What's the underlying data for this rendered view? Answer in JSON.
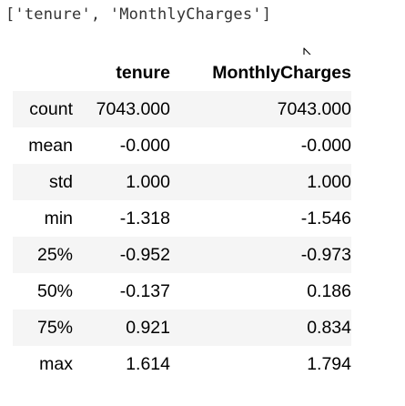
{
  "output_text": "['tenure', 'MonthlyCharges']",
  "table": {
    "index_header": "",
    "columns": [
      "tenure",
      "MonthlyCharges"
    ],
    "rows": [
      {
        "label": "count",
        "values": [
          "7043.000",
          "7043.000"
        ]
      },
      {
        "label": "mean",
        "values": [
          "-0.000",
          "-0.000"
        ]
      },
      {
        "label": "std",
        "values": [
          "1.000",
          "1.000"
        ]
      },
      {
        "label": "min",
        "values": [
          "-1.318",
          "-1.546"
        ]
      },
      {
        "label": "25%",
        "values": [
          "-0.952",
          "-0.973"
        ]
      },
      {
        "label": "50%",
        "values": [
          "-0.137",
          "0.186"
        ]
      },
      {
        "label": "75%",
        "values": [
          "0.921",
          "0.834"
        ]
      },
      {
        "label": "max",
        "values": [
          "1.614",
          "1.794"
        ]
      }
    ]
  },
  "cursor": {
    "icon": "mouse-pointer-icon"
  }
}
